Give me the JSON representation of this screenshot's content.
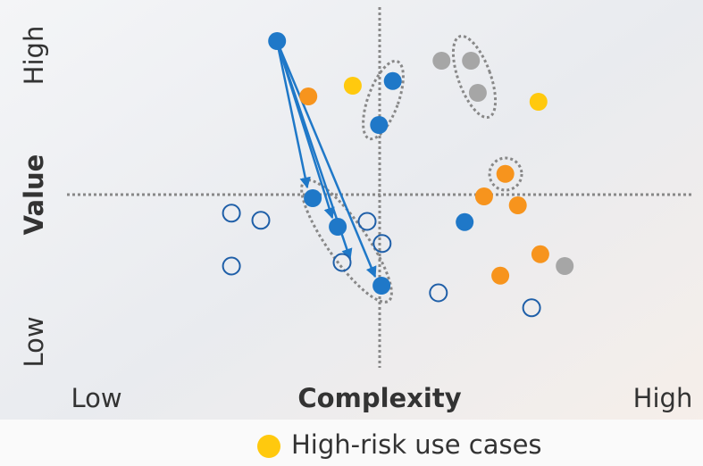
{
  "chart_data": {
    "type": "scatter",
    "xlabel": "Complexity",
    "ylabel": "Value",
    "x_end_labels": [
      "Low",
      "High"
    ],
    "y_end_labels": [
      "Low",
      "High"
    ],
    "xlim": [
      0,
      10
    ],
    "ylim": [
      0,
      10
    ],
    "series": [
      {
        "color": "#1f78c8",
        "filled": true,
        "x": [
          3.36,
          5.21,
          4.99,
          3.93,
          4.33,
          5.03,
          6.36
        ],
        "y": [
          9.3,
          8.18,
          6.95,
          4.9,
          4.1,
          2.45,
          4.23
        ]
      },
      {
        "color": "#a6a6a6",
        "filled": true,
        "x": [
          5.99,
          6.46,
          6.57,
          7.96
        ],
        "y": [
          8.75,
          8.75,
          7.85,
          3.0
        ]
      },
      {
        "color": "#f7941d",
        "filled": true,
        "x": [
          3.86,
          7.01,
          6.67,
          7.21,
          7.57,
          6.93
        ],
        "y": [
          7.75,
          5.58,
          4.95,
          4.7,
          3.33,
          2.73
        ]
      },
      {
        "name": "High-risk use cases",
        "color": "#ffc90e",
        "filled": true,
        "x": [
          4.57,
          7.54
        ],
        "y": [
          8.05,
          7.6
        ]
      },
      {
        "color": "#1f5fa8",
        "filled": false,
        "x": [
          2.63,
          3.1,
          4.8,
          5.04,
          2.63,
          4.4,
          5.94,
          7.43
        ],
        "y": [
          4.48,
          4.28,
          4.25,
          3.63,
          3.0,
          3.1,
          2.25,
          1.83
        ]
      }
    ]
  }
}
